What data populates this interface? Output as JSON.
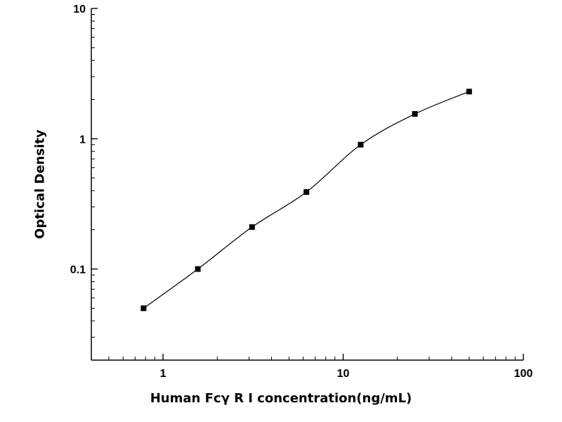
{
  "figure": {
    "background_color": "#ffffff"
  },
  "chart_data": {
    "type": "scatter",
    "title": "",
    "xlabel": "Human Fcγ R Ⅰ concentration(ng/mL)",
    "ylabel": "Optical Density",
    "x_scale": "log",
    "y_scale": "log",
    "xlim": [
      0.4,
      100
    ],
    "ylim": [
      0.02,
      10
    ],
    "x_major_ticks": [
      1,
      10,
      100
    ],
    "x_tick_labels": [
      "1",
      "10",
      "100"
    ],
    "y_major_ticks": [
      0.1,
      1,
      10
    ],
    "y_tick_labels": [
      "0.1",
      "1",
      "10"
    ],
    "grid": false,
    "legend": null,
    "curve": "smooth fit through points",
    "points": [
      {
        "x": 0.78,
        "y": 0.05
      },
      {
        "x": 1.56,
        "y": 0.1
      },
      {
        "x": 3.12,
        "y": 0.21
      },
      {
        "x": 6.25,
        "y": 0.39
      },
      {
        "x": 12.5,
        "y": 0.9
      },
      {
        "x": 25,
        "y": 1.55
      },
      {
        "x": 50,
        "y": 2.3
      }
    ],
    "style": {
      "axis_color": "#000000",
      "curve_color": "#000000",
      "marker_color": "#000000",
      "marker": "square",
      "marker_size_px": 8
    }
  }
}
